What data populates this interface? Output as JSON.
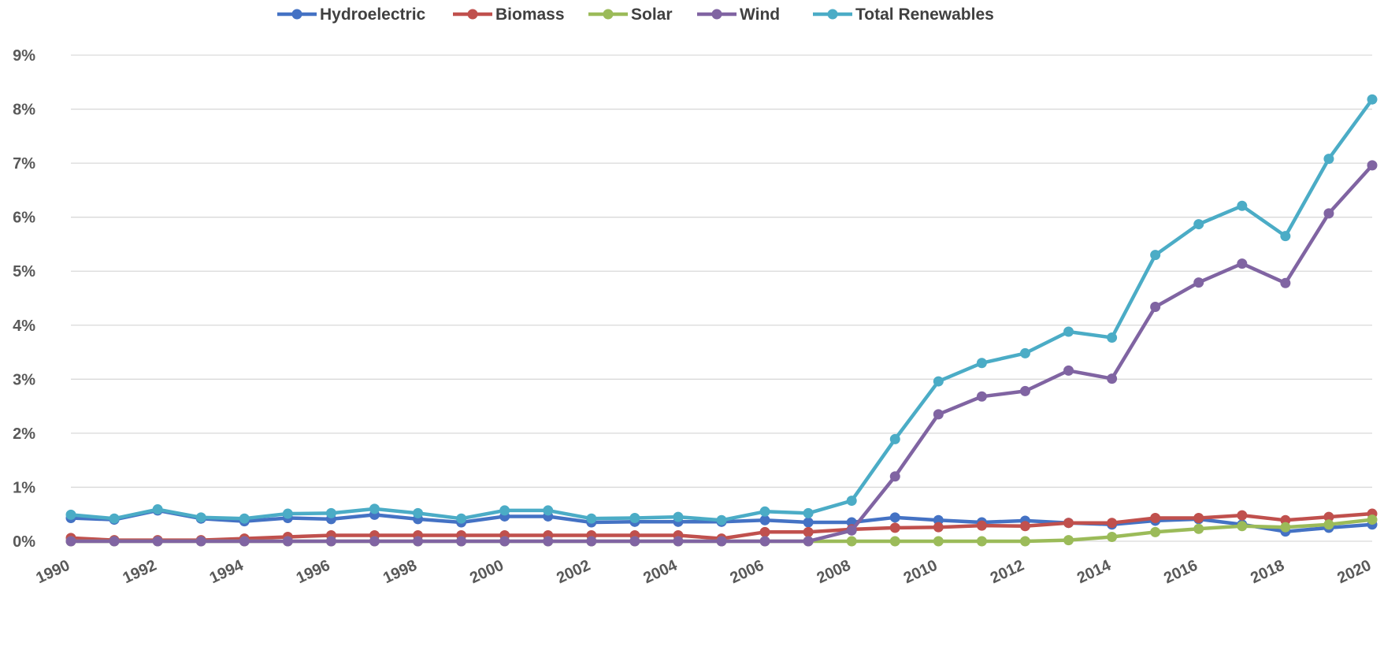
{
  "chart_data": {
    "type": "line",
    "title": "",
    "xlabel": "",
    "ylabel": "",
    "x": [
      1990,
      1991,
      1992,
      1993,
      1994,
      1995,
      1996,
      1997,
      1998,
      1999,
      2000,
      2001,
      2002,
      2003,
      2004,
      2005,
      2006,
      2007,
      2008,
      2009,
      2010,
      2011,
      2012,
      2013,
      2014,
      2015,
      2016,
      2017,
      2018,
      2019,
      2020
    ],
    "x_tick_labels": [
      "1990",
      "1992",
      "1994",
      "1996",
      "1998",
      "2000",
      "2002",
      "2004",
      "2006",
      "2008",
      "2010",
      "2012",
      "2014",
      "2016",
      "2018",
      "2020"
    ],
    "y_tick_labels": [
      "0%",
      "1%",
      "2%",
      "3%",
      "4%",
      "5%",
      "6%",
      "7%",
      "8%",
      "9%"
    ],
    "ylim": [
      0,
      9
    ],
    "y_unit": "%",
    "grid": true,
    "legend_position": "top",
    "series": [
      {
        "name": "Hydroelectric",
        "color": "#4472c4",
        "values": [
          0.43,
          0.4,
          0.57,
          0.42,
          0.37,
          0.43,
          0.41,
          0.49,
          0.41,
          0.35,
          0.46,
          0.46,
          0.35,
          0.36,
          0.36,
          0.36,
          0.39,
          0.35,
          0.35,
          0.44,
          0.39,
          0.35,
          0.38,
          0.34,
          0.31,
          0.38,
          0.41,
          0.31,
          0.18,
          0.25,
          0.31
        ]
      },
      {
        "name": "Biomass",
        "color": "#c0504d",
        "values": [
          0.06,
          0.02,
          0.02,
          0.02,
          0.05,
          0.08,
          0.11,
          0.11,
          0.11,
          0.11,
          0.11,
          0.11,
          0.11,
          0.11,
          0.11,
          0.05,
          0.17,
          0.17,
          0.22,
          0.25,
          0.26,
          0.29,
          0.28,
          0.34,
          0.34,
          0.43,
          0.43,
          0.48,
          0.39,
          0.45,
          0.51
        ]
      },
      {
        "name": "Solar",
        "color": "#9bbb59",
        "values": [
          0,
          0,
          0,
          0,
          0,
          0,
          0,
          0,
          0,
          0,
          0,
          0,
          0,
          0,
          0,
          0,
          0,
          0,
          0,
          0,
          0,
          0,
          0,
          0.02,
          0.08,
          0.17,
          0.23,
          0.28,
          0.26,
          0.31,
          0.4
        ]
      },
      {
        "name": "Wind",
        "color": "#8064a2",
        "values": [
          0,
          0,
          0,
          0,
          0,
          0,
          0,
          0,
          0,
          0,
          0,
          0,
          0,
          0,
          0,
          0,
          0,
          0,
          0.2,
          1.2,
          2.35,
          2.68,
          2.78,
          3.16,
          3.01,
          4.34,
          4.79,
          5.14,
          4.78,
          6.07,
          6.96
        ]
      },
      {
        "name": "Total Renewables",
        "color": "#4bacc6",
        "values": [
          0.49,
          0.42,
          0.59,
          0.44,
          0.42,
          0.51,
          0.52,
          0.6,
          0.52,
          0.42,
          0.57,
          0.57,
          0.42,
          0.43,
          0.45,
          0.39,
          0.55,
          0.52,
          0.75,
          1.89,
          2.96,
          3.3,
          3.48,
          3.88,
          3.77,
          5.3,
          5.87,
          6.21,
          5.65,
          7.08,
          8.18
        ]
      }
    ]
  }
}
